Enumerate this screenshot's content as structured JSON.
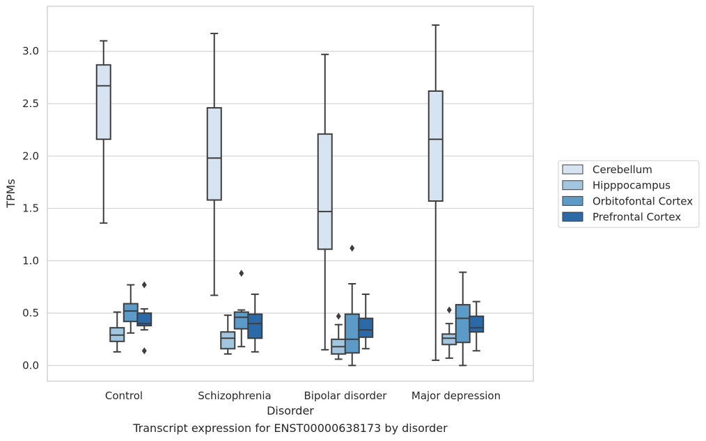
{
  "chart_data": {
    "type": "box",
    "xlabel": "Disorder",
    "ylabel": "TPMs",
    "ylim": [
      -0.15,
      3.43
    ],
    "yticks": [
      0.0,
      0.5,
      1.0,
      1.5,
      2.0,
      2.5,
      3.0
    ],
    "ytick_labels": [
      "0.0",
      "0.5",
      "1.0",
      "1.5",
      "2.0",
      "2.5",
      "3.0"
    ],
    "grid": "horizontal",
    "legend_position": "right",
    "categories": [
      "Control",
      "Schizophrenia",
      "Bipolar disorder",
      "Major depression"
    ],
    "series": [
      {
        "name": "Cerebellum",
        "color": "#d6e4f2",
        "boxes": [
          {
            "whisker_low": 1.36,
            "q1": 2.16,
            "median": 2.67,
            "q3": 2.87,
            "whisker_high": 3.1,
            "outliers": []
          },
          {
            "whisker_low": 0.67,
            "q1": 1.58,
            "median": 1.98,
            "q3": 2.46,
            "whisker_high": 3.17,
            "outliers": []
          },
          {
            "whisker_low": 0.15,
            "q1": 1.11,
            "median": 1.47,
            "q3": 2.21,
            "whisker_high": 2.97,
            "outliers": []
          },
          {
            "whisker_low": 0.05,
            "q1": 1.57,
            "median": 2.16,
            "q3": 2.62,
            "whisker_high": 3.25,
            "outliers": []
          }
        ]
      },
      {
        "name": "Hipppocampus",
        "color": "#a2c6df",
        "boxes": [
          {
            "whisker_low": 0.13,
            "q1": 0.23,
            "median": 0.29,
            "q3": 0.36,
            "whisker_high": 0.51,
            "outliers": []
          },
          {
            "whisker_low": 0.11,
            "q1": 0.16,
            "median": 0.26,
            "q3": 0.32,
            "whisker_high": 0.48,
            "outliers": []
          },
          {
            "whisker_low": 0.06,
            "q1": 0.11,
            "median": 0.18,
            "q3": 0.25,
            "whisker_high": 0.39,
            "outliers": [
              0.47
            ]
          },
          {
            "whisker_low": 0.07,
            "q1": 0.2,
            "median": 0.26,
            "q3": 0.3,
            "whisker_high": 0.4,
            "outliers": [
              0.53
            ]
          }
        ]
      },
      {
        "name": "Orbitofontal Cortex",
        "color": "#5c9bc8",
        "boxes": [
          {
            "whisker_low": 0.31,
            "q1": 0.42,
            "median": 0.52,
            "q3": 0.59,
            "whisker_high": 0.77,
            "outliers": []
          },
          {
            "whisker_low": 0.18,
            "q1": 0.35,
            "median": 0.46,
            "q3": 0.51,
            "whisker_high": 0.53,
            "outliers": [
              0.88
            ]
          },
          {
            "whisker_low": 0.0,
            "q1": 0.12,
            "median": 0.25,
            "q3": 0.49,
            "whisker_high": 0.78,
            "outliers": [
              1.12
            ]
          },
          {
            "whisker_low": 0.0,
            "q1": 0.22,
            "median": 0.45,
            "q3": 0.58,
            "whisker_high": 0.89,
            "outliers": []
          }
        ]
      },
      {
        "name": "Prefrontal Cortex",
        "color": "#2c69a9",
        "boxes": [
          {
            "whisker_low": 0.34,
            "q1": 0.38,
            "median": 0.4,
            "q3": 0.5,
            "whisker_high": 0.54,
            "outliers": [
              0.77,
              0.14
            ]
          },
          {
            "whisker_low": 0.13,
            "q1": 0.26,
            "median": 0.4,
            "q3": 0.49,
            "whisker_high": 0.68,
            "outliers": []
          },
          {
            "whisker_low": 0.16,
            "q1": 0.27,
            "median": 0.34,
            "q3": 0.45,
            "whisker_high": 0.68,
            "outliers": []
          },
          {
            "whisker_low": 0.14,
            "q1": 0.32,
            "median": 0.36,
            "q3": 0.47,
            "whisker_high": 0.61,
            "outliers": []
          }
        ]
      }
    ]
  },
  "caption": "Transcript expression for ENST00000638173 by disorder"
}
